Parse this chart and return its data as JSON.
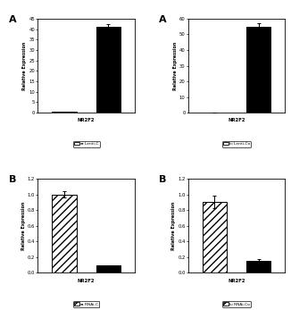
{
  "panels": [
    {
      "panel_label": "A",
      "row": 0,
      "col": 0,
      "bars": [
        {
          "value": 0.5,
          "error": 0.1,
          "color": "#000000",
          "hatch": ""
        },
        {
          "value": 41.0,
          "error": 1.5,
          "color": "#000000",
          "hatch": ""
        }
      ],
      "ylim": [
        0,
        45
      ],
      "yticks": [
        0,
        5,
        10,
        15,
        20,
        25,
        30,
        35,
        40,
        45
      ],
      "ylabel": "Relative Expression",
      "xlabel": "NR2F2",
      "legend_text": "≡ Lenti-C",
      "legend_hatch": ""
    },
    {
      "panel_label": "A",
      "row": 0,
      "col": 1,
      "bars": [
        {
          "value": 0.3,
          "error": 0.1,
          "color": "#000000",
          "hatch": ""
        },
        {
          "value": 55.0,
          "error": 2.0,
          "color": "#000000",
          "hatch": ""
        }
      ],
      "ylim": [
        0,
        60
      ],
      "yticks": [
        0,
        10,
        20,
        30,
        40,
        50,
        60
      ],
      "ylabel": "Relative Expression",
      "xlabel": "NR2F2",
      "legend_text": "ki Lenti-Co",
      "legend_hatch": ""
    },
    {
      "panel_label": "B",
      "row": 1,
      "col": 0,
      "bars": [
        {
          "value": 1.0,
          "error": 0.04,
          "color": "#000000",
          "hatch": "////"
        },
        {
          "value": 0.09,
          "error": 0.01,
          "color": "#000000",
          "hatch": ""
        }
      ],
      "ylim": [
        0,
        1.2
      ],
      "yticks": [
        0,
        0.2,
        0.4,
        0.6,
        0.8,
        1.0,
        1.2
      ],
      "ylabel": "Relative Expression",
      "xlabel": "NR2F2",
      "legend_text": "≡ RNAi-C",
      "legend_hatch": "////"
    },
    {
      "panel_label": "B",
      "row": 1,
      "col": 1,
      "bars": [
        {
          "value": 0.9,
          "error": 0.08,
          "color": "#000000",
          "hatch": "////"
        },
        {
          "value": 0.15,
          "error": 0.02,
          "color": "#000000",
          "hatch": ""
        }
      ],
      "ylim": [
        0,
        1.2
      ],
      "yticks": [
        0,
        0.2,
        0.4,
        0.6,
        0.8,
        1.0,
        1.2
      ],
      "ylabel": "Relative Expression",
      "xlabel": "NR2F2",
      "legend_text": "ki RNAi-Co",
      "legend_hatch": "////"
    }
  ],
  "bg_color": "#ffffff",
  "bar_width": 0.55,
  "font_color": "#000000"
}
